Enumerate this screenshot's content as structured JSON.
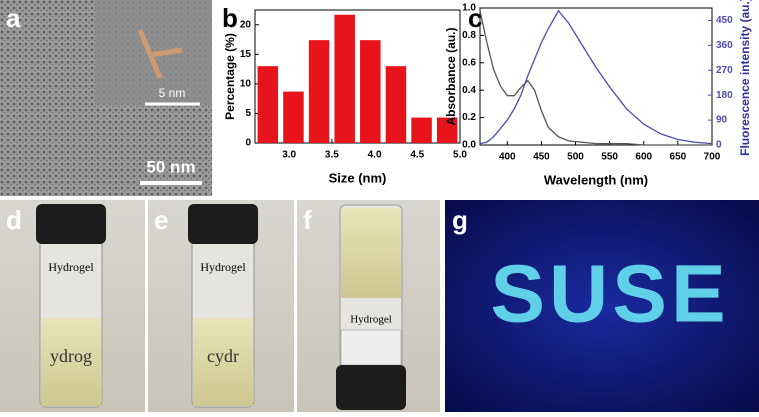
{
  "panel_labels": [
    "a",
    "b",
    "c",
    "d",
    "e",
    "f",
    "g"
  ],
  "image_texts": {
    "scale_large": "50 nm",
    "scale_small": "5 nm",
    "vial_label": "Hydrogel",
    "vial_d_text": "ydrog",
    "vial_e_text": "cydr",
    "glow_text": "SUSE"
  },
  "chart_data": [
    {
      "type": "bar",
      "xlabel": "Size (nm)",
      "ylabel": "Percentage (%)",
      "color": "#e8141b",
      "x": [
        2.75,
        3.05,
        3.35,
        3.65,
        3.95,
        4.25,
        4.55,
        4.85
      ],
      "values": [
        13,
        8.7,
        17.4,
        21.7,
        17.4,
        13,
        4.3,
        4.3
      ],
      "xlim": [
        2.6,
        5.0
      ],
      "xticks": [
        {
          "value": 3,
          "label": "3.0"
        },
        3.5,
        {
          "value": 4,
          "label": "4.0"
        },
        4.5,
        {
          "value": 5,
          "label": "5.0"
        }
      ],
      "ylim": [
        0,
        22.5
      ],
      "yticks": [
        0,
        5,
        10,
        15,
        20
      ]
    },
    {
      "type": "line",
      "xlabel": "Wavelength (nm)",
      "ylabel": "Absorbance (au.)",
      "y2label": "Fluorescence intensity (au.)",
      "x": [
        360,
        370,
        380,
        390,
        400,
        410,
        420,
        430,
        440,
        450,
        460,
        475,
        490,
        510,
        530,
        550,
        575,
        600,
        625,
        650,
        675,
        700
      ],
      "series": [
        {
          "color": "#555555",
          "values": [
            0.98,
            0.75,
            0.55,
            0.43,
            0.36,
            0.36,
            0.42,
            0.47,
            0.4,
            0.25,
            0.13,
            0.06,
            0.03,
            0.02,
            0.01,
            0.01,
            0.01,
            0,
            0,
            0,
            0,
            0
          ]
        },
        {
          "color": "#4b4bb0",
          "axis": "y2",
          "values": [
            5,
            10,
            30,
            60,
            90,
            130,
            180,
            250,
            310,
            370,
            420,
            485,
            440,
            360,
            280,
            210,
            130,
            75,
            40,
            20,
            10,
            5
          ]
        }
      ],
      "xlim": [
        360,
        700
      ],
      "xticks": [
        400,
        450,
        500,
        550,
        600,
        650,
        700
      ],
      "ylim": [
        0,
        1
      ],
      "yticks": [
        {
          "value": 0,
          "label": "0.0"
        },
        0.2,
        0.4,
        0.6,
        0.8,
        {
          "value": 1,
          "label": "1.0"
        }
      ],
      "y2lim": [
        0,
        495
      ],
      "y2ticks": [
        0,
        90,
        180,
        270,
        360,
        450
      ]
    }
  ]
}
